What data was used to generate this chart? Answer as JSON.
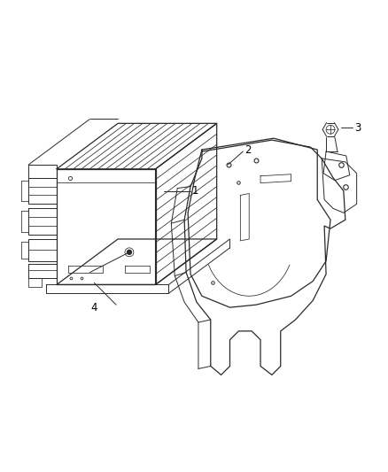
{
  "background_color": "#ffffff",
  "line_color": "#2a2a2a",
  "label_color": "#000000",
  "fig_width": 4.39,
  "fig_height": 5.33,
  "dpi": 100,
  "label_fontsize": 8.5,
  "lw_main": 0.9,
  "lw_thin": 0.55,
  "lw_med": 0.7
}
